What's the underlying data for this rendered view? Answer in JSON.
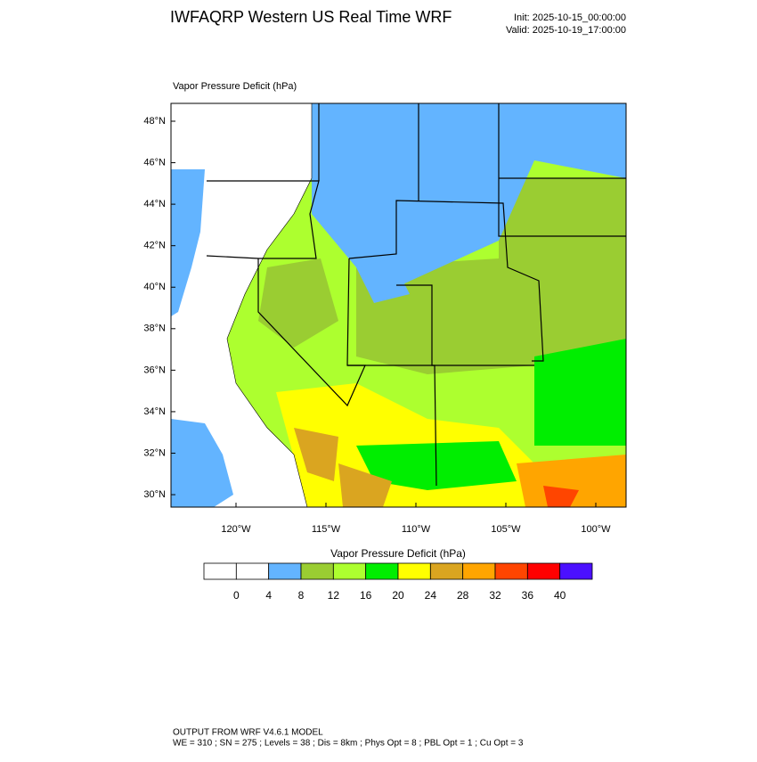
{
  "header": {
    "title": "IWFAQRP Western US Real Time WRF",
    "init": "Init: 2025-10-15_00:00:00",
    "valid": "Valid: 2025-10-19_17:00:00"
  },
  "map": {
    "field_label": "Vapor Pressure Deficit   (hPa)",
    "lat_ticks": [
      {
        "value": 48,
        "label": "48°N"
      },
      {
        "value": 46,
        "label": "46°N"
      },
      {
        "value": 44,
        "label": "44°N"
      },
      {
        "value": 42,
        "label": "42°N"
      },
      {
        "value": 40,
        "label": "40°N"
      },
      {
        "value": 38,
        "label": "38°N"
      },
      {
        "value": 36,
        "label": "36°N"
      },
      {
        "value": 34,
        "label": "34°N"
      },
      {
        "value": 32,
        "label": "32°N"
      },
      {
        "value": 30,
        "label": "30°N"
      }
    ],
    "lon_ticks": [
      {
        "value": -120,
        "label": "120°W"
      },
      {
        "value": -115,
        "label": "115°W"
      },
      {
        "value": -110,
        "label": "110°W"
      },
      {
        "value": -105,
        "label": "105°W"
      },
      {
        "value": -100,
        "label": "100°W"
      }
    ]
  },
  "colorbar": {
    "title": "Vapor Pressure Deficit  (hPa)",
    "levels": [
      0,
      4,
      8,
      12,
      16,
      20,
      24,
      28,
      32,
      36,
      40
    ],
    "colors": [
      "#ffffff",
      "#ffffff",
      "#63b4ff",
      "#9acd32",
      "#adff2f",
      "#00ee00",
      "#ffff00",
      "#daa520",
      "#ffa500",
      "#ff4500",
      "#ff0000",
      "#4b10ff"
    ]
  },
  "footer": {
    "line1": "OUTPUT FROM WRF V4.6.1 MODEL",
    "line2": "WE = 310 ; SN = 275 ; Levels = 38 ; Dis = 8km ; Phys Opt = 8 ; PBL Opt = 1 ; Cu Opt = 3"
  }
}
